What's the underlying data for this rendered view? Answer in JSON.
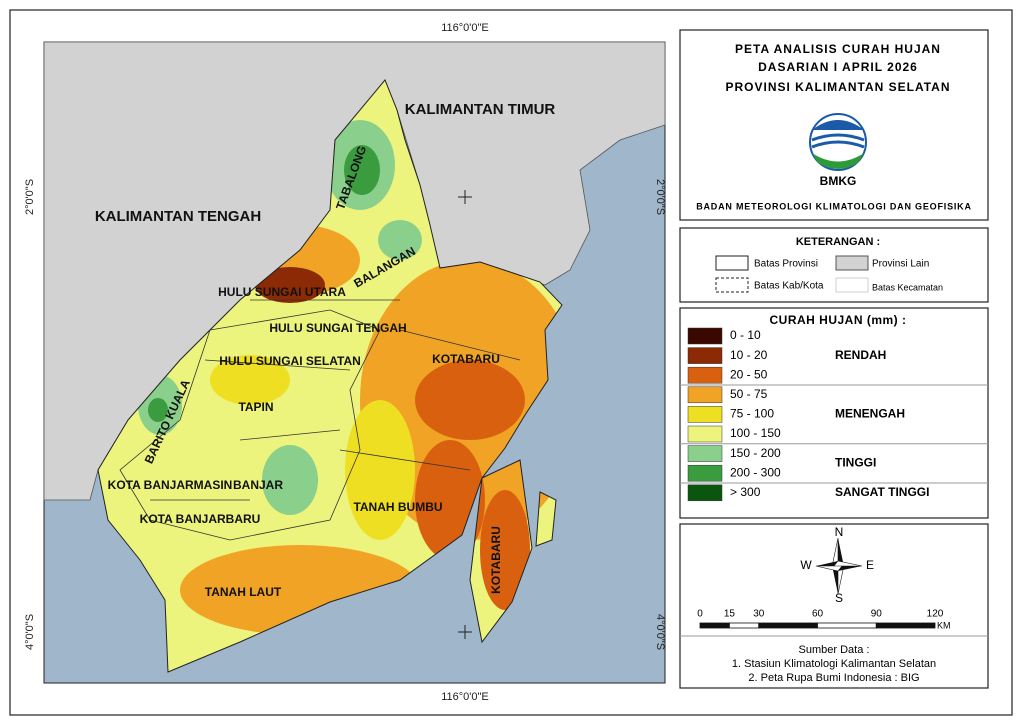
{
  "coordinates": {
    "lon": "116°0'0\"E",
    "lat_top": "2°0'0\"S",
    "lat_bottom": "4°0'0\"S"
  },
  "map_labels": {
    "kalimantan_timur": "KALIMANTAN TIMUR",
    "kalimantan_tengah": "KALIMANTAN TENGAH",
    "tabalong": "TABALONG",
    "balangan": "BALANGAN",
    "hulu_sungai_utara": "HULU SUNGAI UTARA",
    "hulu_sungai_tengah": "HULU SUNGAI TENGAH",
    "hulu_sungai_selatan": "HULU SUNGAI SELATAN",
    "kotabaru": "KOTABARU",
    "tapin": "TAPIN",
    "barito_kuala": "BARITO KUALA",
    "kota_banjarmasin": "KOTA BANJARMASIN",
    "banjar": "BANJAR",
    "kota_banjarbaru": "KOTA BANJARBARU",
    "tanah_bumbu": "TANAH BUMBU",
    "tanah_laut": "TANAH LAUT",
    "kotabaru_island": "KOTABARU"
  },
  "header": {
    "title_lines": [
      "PETA ANALISIS CURAH HUJAN",
      "DASARIAN I APRIL 2026",
      "PROVINSI KALIMANTAN SELATAN"
    ],
    "logo_text": "BMKG",
    "agency": "BADAN METEOROLOGI KLIMATOLOGI DAN GEOFISIKA"
  },
  "keterangan": {
    "title": "KETERANGAN :",
    "items": [
      "Batas Provinsi",
      "Provinsi Lain",
      "Batas Kab/Kota",
      "Batas Kecamatan"
    ]
  },
  "rainfall_legend": {
    "title": "CURAH HUJAN (mm) :",
    "classes": [
      {
        "label": "0 - 10",
        "color": "#3a0800"
      },
      {
        "label": "10 - 20",
        "color": "#8c2a05"
      },
      {
        "label": "20 - 50",
        "color": "#d9600f"
      },
      {
        "label": "50 - 75",
        "color": "#f0a325"
      },
      {
        "label": "75 - 100",
        "color": "#efdf22"
      },
      {
        "label": "100 - 150",
        "color": "#ecf47e"
      },
      {
        "label": "150 - 200",
        "color": "#8ad08c"
      },
      {
        "label": "200 - 300",
        "color": "#3b9b3f"
      },
      {
        "label": "> 300",
        "color": "#0b560f"
      }
    ],
    "groups": [
      "RENDAH",
      "MENENGAH",
      "TINGGI",
      "SANGAT TINGGI"
    ]
  },
  "compass": {
    "n": "N",
    "s": "S",
    "e": "E",
    "w": "W"
  },
  "scale_bar": {
    "ticks": [
      0,
      15,
      30,
      60,
      90,
      120
    ],
    "unit": "KM"
  },
  "source": {
    "title": "Sumber Data :",
    "lines": [
      "1. Stasiun Klimatologi Kalimantan Selatan",
      "2. Peta Rupa Bumi Indonesia : BIG"
    ]
  }
}
